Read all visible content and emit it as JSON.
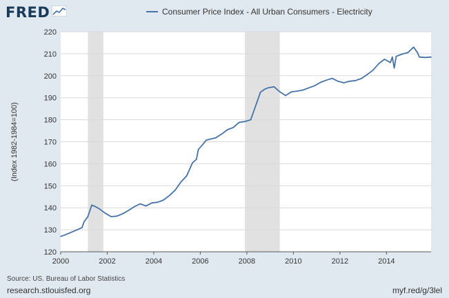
{
  "header": {
    "logo_text": "FRED",
    "logo_icon": "chart-line-icon"
  },
  "colors": {
    "background": "#e1e9f0",
    "plot_background": "#ffffff",
    "series": "#4572a7",
    "recession": "#e1e1e1",
    "grid": "#d9d9d9"
  },
  "footer": {
    "source": "Source: US. Bureau of Labor Statistics",
    "site": "research.stlouisfed.org",
    "short_url": "myf.red/g/3lel"
  },
  "chart_data": {
    "type": "line",
    "title": "",
    "xlabel": "",
    "ylabel": "(Index 1982-1984=100)",
    "ylim": [
      120,
      220
    ],
    "xlim": [
      "2000-01",
      "2015-12"
    ],
    "y_ticks": [
      "120",
      "130",
      "140",
      "150",
      "160",
      "170",
      "180",
      "190",
      "200",
      "210",
      "220"
    ],
    "x_ticks": [
      "2000",
      "2002",
      "2004",
      "2006",
      "2008",
      "2010",
      "2012",
      "2014"
    ],
    "grid": true,
    "legend_position": "top",
    "recessions": [
      {
        "start": "2001-03",
        "end": "2001-11"
      },
      {
        "start": "2007-12",
        "end": "2009-06"
      }
    ],
    "series": [
      {
        "name": "Consumer Price Index - All Urban Consumers - Electricity",
        "x": [
          "2000-01",
          "2000-03",
          "2000-06",
          "2000-09",
          "2000-12",
          "2001-01",
          "2001-03",
          "2001-05",
          "2001-07",
          "2001-09",
          "2001-12",
          "2002-03",
          "2002-06",
          "2002-09",
          "2002-12",
          "2003-03",
          "2003-06",
          "2003-09",
          "2003-12",
          "2004-03",
          "2004-06",
          "2004-09",
          "2004-12",
          "2005-03",
          "2005-06",
          "2005-09",
          "2005-11",
          "2005-12",
          "2006-02",
          "2006-04",
          "2006-06",
          "2006-09",
          "2006-12",
          "2007-03",
          "2007-06",
          "2007-09",
          "2007-12",
          "2008-03",
          "2008-06",
          "2008-08",
          "2008-10",
          "2008-12",
          "2009-03",
          "2009-06",
          "2009-09",
          "2009-12",
          "2010-03",
          "2010-06",
          "2010-09",
          "2010-12",
          "2011-03",
          "2011-06",
          "2011-09",
          "2011-12",
          "2012-03",
          "2012-06",
          "2012-09",
          "2012-12",
          "2013-03",
          "2013-06",
          "2013-09",
          "2013-12",
          "2014-03",
          "2014-04",
          "2014-05",
          "2014-06",
          "2014-09",
          "2014-12",
          "2015-03",
          "2015-05",
          "2015-06",
          "2015-09",
          "2015-12"
        ],
        "values": [
          127,
          127.6,
          128.7,
          129.8,
          131,
          133.5,
          136,
          141.2,
          140.5,
          139.5,
          137.5,
          136,
          136.2,
          137.3,
          138.8,
          140.5,
          141.8,
          140.8,
          142.2,
          142.5,
          143.5,
          145.5,
          148,
          151.7,
          154.5,
          160.5,
          162,
          166.5,
          168.5,
          170.7,
          171.2,
          171.8,
          173.5,
          175.5,
          176.5,
          178.8,
          179.2,
          180,
          187.5,
          192.5,
          193.8,
          194.5,
          195,
          192.7,
          191,
          192.7,
          193,
          193.5,
          194.5,
          195.5,
          197,
          198,
          198.8,
          197.5,
          196.8,
          197.5,
          197.8,
          198.7,
          200.5,
          202.5,
          205.5,
          207.5,
          206,
          208.5,
          203.5,
          208.8,
          209.8,
          210.5,
          213,
          210.5,
          208.5,
          208.3,
          208.5
        ]
      }
    ]
  }
}
